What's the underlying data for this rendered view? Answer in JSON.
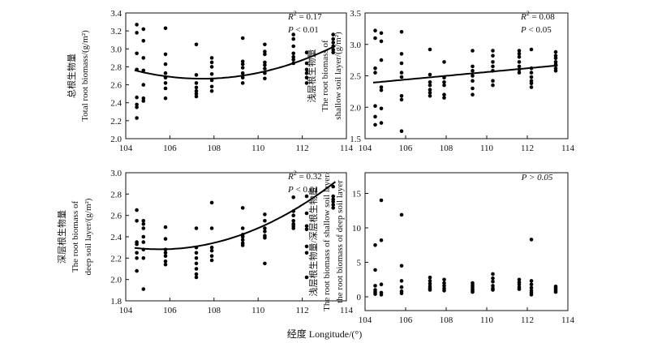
{
  "figure": {
    "xlabel": "经度 Longitude/(°)"
  },
  "chart_data": [
    {
      "type": "scatter",
      "ylabel_lines": [
        "总根生物量",
        "Total root biomass/(g/m²)"
      ],
      "xlim": [
        104,
        114
      ],
      "ylim": [
        2.0,
        3.4
      ],
      "xticks": [
        104,
        106,
        108,
        110,
        112,
        114
      ],
      "yticks": [
        "2.0",
        "2.2",
        "2.4",
        "2.6",
        "2.8",
        "3.0",
        "3.2",
        "3.4"
      ],
      "stats": {
        "r2_value": "0.17",
        "p_text": "< 0.01"
      },
      "fit": {
        "kind": "quadratic",
        "a": 0.01,
        "b": -2.149,
        "c": 118.123
      },
      "points": [
        [
          104.5,
          3.27
        ],
        [
          104.5,
          3.18
        ],
        [
          104.5,
          2.95
        ],
        [
          104.5,
          2.77
        ],
        [
          104.5,
          2.46
        ],
        [
          104.5,
          2.38
        ],
        [
          104.5,
          2.35
        ],
        [
          104.5,
          2.23
        ],
        [
          104.8,
          3.22
        ],
        [
          104.8,
          3.09
        ],
        [
          104.8,
          2.9
        ],
        [
          104.8,
          2.76
        ],
        [
          104.8,
          2.6
        ],
        [
          104.8,
          2.45
        ],
        [
          104.8,
          2.42
        ],
        [
          105.8,
          3.23
        ],
        [
          105.8,
          2.94
        ],
        [
          105.8,
          2.83
        ],
        [
          105.8,
          2.73
        ],
        [
          105.8,
          2.68
        ],
        [
          105.8,
          2.62
        ],
        [
          105.8,
          2.56
        ],
        [
          105.8,
          2.45
        ],
        [
          107.2,
          3.05
        ],
        [
          107.2,
          2.71
        ],
        [
          107.2,
          2.62
        ],
        [
          107.2,
          2.57
        ],
        [
          107.2,
          2.53
        ],
        [
          107.2,
          2.5
        ],
        [
          107.2,
          2.47
        ],
        [
          107.9,
          2.9
        ],
        [
          107.9,
          2.85
        ],
        [
          107.9,
          2.8
        ],
        [
          107.9,
          2.72
        ],
        [
          107.9,
          2.65
        ],
        [
          107.9,
          2.58
        ],
        [
          107.9,
          2.53
        ],
        [
          109.3,
          3.12
        ],
        [
          109.3,
          2.86
        ],
        [
          109.3,
          2.83
        ],
        [
          109.3,
          2.79
        ],
        [
          109.3,
          2.73
        ],
        [
          109.3,
          2.68
        ],
        [
          109.3,
          2.62
        ],
        [
          110.3,
          3.05
        ],
        [
          110.3,
          2.97
        ],
        [
          110.3,
          2.94
        ],
        [
          110.3,
          2.85
        ],
        [
          110.3,
          2.82
        ],
        [
          110.3,
          2.78
        ],
        [
          110.3,
          2.73
        ],
        [
          110.3,
          2.67
        ],
        [
          111.6,
          3.16
        ],
        [
          111.6,
          3.11
        ],
        [
          111.6,
          3.03
        ],
        [
          111.6,
          2.95
        ],
        [
          111.6,
          2.91
        ],
        [
          111.6,
          2.88
        ],
        [
          111.6,
          2.84
        ],
        [
          112.2,
          2.96
        ],
        [
          112.2,
          2.84
        ],
        [
          112.2,
          2.77
        ],
        [
          112.2,
          2.73
        ],
        [
          112.2,
          2.68
        ],
        [
          112.2,
          2.62
        ],
        [
          113.4,
          3.16
        ],
        [
          113.4,
          3.11
        ],
        [
          113.4,
          3.07
        ],
        [
          113.4,
          3.03
        ],
        [
          113.4,
          2.99
        ],
        [
          113.4,
          2.96
        ]
      ]
    },
    {
      "type": "scatter",
      "ylabel_lines": [
        "浅层根生物量",
        "The root biomass of",
        "shallow soil layer/(g/m²)"
      ],
      "xlim": [
        104,
        114
      ],
      "ylim": [
        1.5,
        3.5
      ],
      "xticks": [
        104,
        106,
        108,
        110,
        112,
        114
      ],
      "yticks": [
        "1.5",
        "2.0",
        "2.5",
        "3.0",
        "3.5"
      ],
      "stats": {
        "r2_value": "0.08",
        "p_text": "< 0.05"
      },
      "fit": {
        "kind": "linear",
        "m": 0.03,
        "k": -0.74
      },
      "points": [
        [
          104.5,
          3.22
        ],
        [
          104.5,
          3.1
        ],
        [
          104.5,
          2.62
        ],
        [
          104.5,
          2.55
        ],
        [
          104.5,
          2.02
        ],
        [
          104.5,
          1.85
        ],
        [
          104.5,
          1.72
        ],
        [
          104.8,
          3.18
        ],
        [
          104.8,
          3.05
        ],
        [
          104.8,
          2.75
        ],
        [
          104.8,
          2.32
        ],
        [
          104.8,
          2.27
        ],
        [
          104.8,
          1.98
        ],
        [
          104.8,
          1.75
        ],
        [
          105.8,
          3.2
        ],
        [
          105.8,
          2.85
        ],
        [
          105.8,
          2.7
        ],
        [
          105.8,
          2.55
        ],
        [
          105.8,
          2.48
        ],
        [
          105.8,
          2.18
        ],
        [
          105.8,
          2.12
        ],
        [
          105.8,
          1.62
        ],
        [
          107.2,
          2.92
        ],
        [
          107.2,
          2.52
        ],
        [
          107.2,
          2.4
        ],
        [
          107.2,
          2.35
        ],
        [
          107.2,
          2.28
        ],
        [
          107.2,
          2.23
        ],
        [
          107.2,
          2.18
        ],
        [
          107.9,
          2.72
        ],
        [
          107.9,
          2.47
        ],
        [
          107.9,
          2.4
        ],
        [
          107.9,
          2.35
        ],
        [
          107.9,
          2.2
        ],
        [
          107.9,
          2.15
        ],
        [
          109.3,
          2.9
        ],
        [
          109.3,
          2.65
        ],
        [
          109.3,
          2.58
        ],
        [
          109.3,
          2.5
        ],
        [
          109.3,
          2.42
        ],
        [
          109.3,
          2.3
        ],
        [
          109.3,
          2.2
        ],
        [
          110.3,
          2.9
        ],
        [
          110.3,
          2.82
        ],
        [
          110.3,
          2.72
        ],
        [
          110.3,
          2.65
        ],
        [
          110.3,
          2.58
        ],
        [
          110.3,
          2.42
        ],
        [
          110.3,
          2.35
        ],
        [
          111.6,
          2.9
        ],
        [
          111.6,
          2.85
        ],
        [
          111.6,
          2.8
        ],
        [
          111.6,
          2.72
        ],
        [
          111.6,
          2.65
        ],
        [
          111.6,
          2.6
        ],
        [
          111.6,
          2.55
        ],
        [
          112.2,
          2.92
        ],
        [
          112.2,
          2.62
        ],
        [
          112.2,
          2.55
        ],
        [
          112.2,
          2.48
        ],
        [
          112.2,
          2.42
        ],
        [
          112.2,
          2.38
        ],
        [
          112.2,
          2.32
        ],
        [
          113.4,
          2.88
        ],
        [
          113.4,
          2.82
        ],
        [
          113.4,
          2.78
        ],
        [
          113.4,
          2.72
        ],
        [
          113.4,
          2.68
        ],
        [
          113.4,
          2.62
        ],
        [
          113.4,
          2.58
        ]
      ]
    },
    {
      "type": "scatter",
      "ylabel_lines": [
        "深层根生物量",
        "The root biomass of",
        "deep soil layer/(g/m²)"
      ],
      "xlim": [
        104,
        114
      ],
      "ylim": [
        1.8,
        3.0
      ],
      "xticks": [
        104,
        106,
        108,
        110,
        112,
        114
      ],
      "yticks": [
        "1.8",
        "2.0",
        "2.2",
        "2.4",
        "2.6",
        "2.8",
        "3.0"
      ],
      "stats": {
        "r2_value": "0.32",
        "p_text": "< 0.01"
      },
      "fit": {
        "kind": "quadratic",
        "a": 0.01,
        "b": -2.111,
        "c": 113.691
      },
      "points": [
        [
          104.5,
          2.65
        ],
        [
          104.5,
          2.55
        ],
        [
          104.5,
          2.35
        ],
        [
          104.5,
          2.33
        ],
        [
          104.5,
          2.25
        ],
        [
          104.5,
          2.2
        ],
        [
          104.5,
          2.08
        ],
        [
          104.8,
          2.55
        ],
        [
          104.8,
          2.52
        ],
        [
          104.8,
          2.48
        ],
        [
          104.8,
          2.4
        ],
        [
          104.8,
          2.35
        ],
        [
          104.8,
          2.28
        ],
        [
          104.8,
          2.2
        ],
        [
          104.8,
          1.91
        ],
        [
          105.8,
          2.49
        ],
        [
          105.8,
          2.38
        ],
        [
          105.8,
          2.28
        ],
        [
          105.8,
          2.25
        ],
        [
          105.8,
          2.22
        ],
        [
          105.8,
          2.17
        ],
        [
          105.8,
          2.14
        ],
        [
          107.2,
          2.48
        ],
        [
          107.2,
          2.3
        ],
        [
          107.2,
          2.25
        ],
        [
          107.2,
          2.2
        ],
        [
          107.2,
          2.15
        ],
        [
          107.2,
          2.1
        ],
        [
          107.2,
          2.05
        ],
        [
          107.2,
          2.02
        ],
        [
          107.9,
          2.72
        ],
        [
          107.9,
          2.48
        ],
        [
          107.9,
          2.3
        ],
        [
          107.9,
          2.27
        ],
        [
          107.9,
          2.22
        ],
        [
          107.9,
          2.18
        ],
        [
          109.3,
          2.67
        ],
        [
          109.3,
          2.48
        ],
        [
          109.3,
          2.42
        ],
        [
          109.3,
          2.4
        ],
        [
          109.3,
          2.37
        ],
        [
          109.3,
          2.34
        ],
        [
          109.3,
          2.32
        ],
        [
          110.3,
          2.61
        ],
        [
          110.3,
          2.55
        ],
        [
          110.3,
          2.48
        ],
        [
          110.3,
          2.45
        ],
        [
          110.3,
          2.41
        ],
        [
          110.3,
          2.39
        ],
        [
          110.3,
          2.15
        ],
        [
          111.6,
          2.77
        ],
        [
          111.6,
          2.64
        ],
        [
          111.6,
          2.6
        ],
        [
          111.6,
          2.55
        ],
        [
          111.6,
          2.52
        ],
        [
          111.6,
          2.5
        ],
        [
          111.6,
          2.48
        ],
        [
          112.2,
          2.78
        ],
        [
          112.2,
          2.62
        ],
        [
          112.2,
          2.5
        ],
        [
          112.2,
          2.47
        ],
        [
          112.2,
          2.31
        ],
        [
          112.2,
          2.25
        ],
        [
          112.2,
          2.02
        ],
        [
          113.4,
          2.87
        ],
        [
          113.4,
          2.78
        ],
        [
          113.4,
          2.75
        ],
        [
          113.4,
          2.73
        ],
        [
          113.4,
          2.7
        ],
        [
          113.4,
          2.67
        ]
      ]
    },
    {
      "type": "scatter",
      "ylabel_lines": [
        "浅层根生物量/深层根生物量",
        "The root biomass of shallow soil layer/",
        "the root biomass of deep soil layer"
      ],
      "xlim": [
        104,
        114
      ],
      "ylim": [
        -2,
        18
      ],
      "xticks": [
        104,
        106,
        108,
        110,
        112,
        114
      ],
      "yticks": [
        "0",
        "5",
        "10",
        "15"
      ],
      "stats": {
        "p_text": "P > 0.05"
      },
      "points": [
        [
          104.5,
          7.5
        ],
        [
          104.5,
          3.9
        ],
        [
          104.5,
          1.6
        ],
        [
          104.5,
          1.0
        ],
        [
          104.5,
          0.7
        ],
        [
          104.5,
          0.4
        ],
        [
          104.8,
          14.0
        ],
        [
          104.8,
          8.2
        ],
        [
          104.8,
          1.8
        ],
        [
          104.8,
          0.6
        ],
        [
          104.8,
          0.3
        ],
        [
          105.8,
          11.9
        ],
        [
          105.8,
          4.5
        ],
        [
          105.8,
          2.3
        ],
        [
          105.8,
          1.4
        ],
        [
          105.8,
          0.8
        ],
        [
          105.8,
          0.5
        ],
        [
          107.2,
          2.8
        ],
        [
          107.2,
          2.3
        ],
        [
          107.2,
          1.9
        ],
        [
          107.2,
          1.5
        ],
        [
          107.2,
          1.2
        ],
        [
          107.2,
          1.0
        ],
        [
          107.9,
          2.5
        ],
        [
          107.9,
          2.0
        ],
        [
          107.9,
          1.6
        ],
        [
          107.9,
          1.2
        ],
        [
          107.9,
          0.9
        ],
        [
          109.3,
          2.0
        ],
        [
          109.3,
          1.7
        ],
        [
          109.3,
          1.4
        ],
        [
          109.3,
          1.1
        ],
        [
          109.3,
          0.9
        ],
        [
          109.3,
          0.7
        ],
        [
          110.3,
          3.3
        ],
        [
          110.3,
          2.7
        ],
        [
          110.3,
          2.2
        ],
        [
          110.3,
          1.6
        ],
        [
          110.3,
          1.2
        ],
        [
          110.3,
          1.0
        ],
        [
          111.6,
          2.5
        ],
        [
          111.6,
          2.1
        ],
        [
          111.6,
          1.8
        ],
        [
          111.6,
          1.4
        ],
        [
          111.6,
          1.1
        ],
        [
          112.2,
          8.3
        ],
        [
          112.2,
          2.3
        ],
        [
          112.2,
          1.8
        ],
        [
          112.2,
          1.3
        ],
        [
          112.2,
          0.9
        ],
        [
          112.2,
          0.6
        ],
        [
          112.2,
          0.3
        ],
        [
          113.4,
          1.5
        ],
        [
          113.4,
          1.3
        ],
        [
          113.4,
          1.1
        ],
        [
          113.4,
          0.9
        ],
        [
          113.4,
          0.7
        ]
      ]
    }
  ]
}
